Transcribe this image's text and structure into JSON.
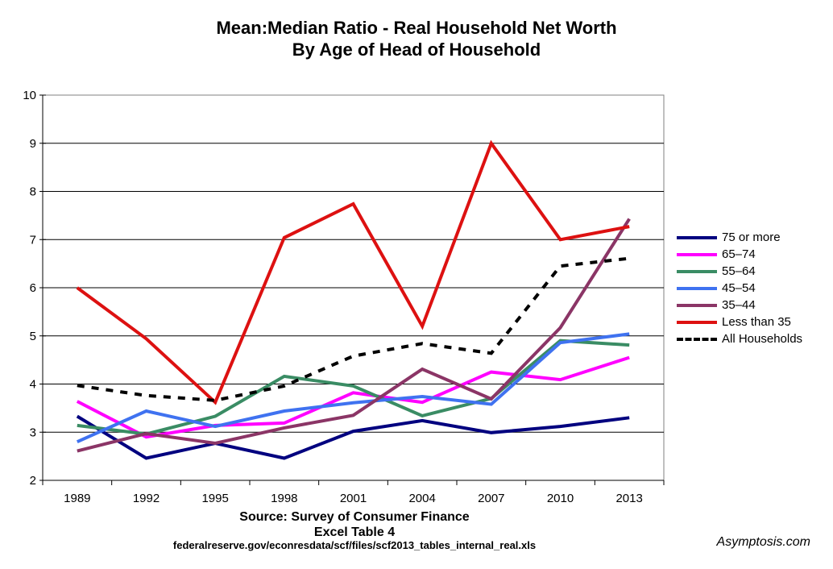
{
  "chart_data": {
    "type": "line",
    "title": "Mean:Median Ratio - Real Household Net Worth",
    "subtitle": "By Age of Head of Household",
    "categories": [
      "1989",
      "1992",
      "1995",
      "1998",
      "2001",
      "2004",
      "2007",
      "2010",
      "2013"
    ],
    "ylim": [
      2,
      10
    ],
    "yticks": [
      2,
      3,
      4,
      5,
      6,
      7,
      8,
      9,
      10
    ],
    "grid": true,
    "legend_position": "right",
    "series": [
      {
        "name": "75 or more",
        "color": "#00007f",
        "dashed": false,
        "values": [
          3.33,
          2.46,
          2.77,
          2.46,
          3.02,
          3.24,
          2.99,
          3.12,
          3.3
        ]
      },
      {
        "name": "65–74",
        "color": "#ff00ff",
        "dashed": false,
        "values": [
          3.64,
          2.9,
          3.14,
          3.19,
          3.82,
          3.62,
          4.25,
          4.09,
          4.55
        ]
      },
      {
        "name": "55–64",
        "color": "#3a8c64",
        "dashed": false,
        "values": [
          3.14,
          2.96,
          3.33,
          4.16,
          3.96,
          3.34,
          3.7,
          4.9,
          4.81
        ]
      },
      {
        "name": "45–54",
        "color": "#3f72f0",
        "dashed": false,
        "values": [
          2.8,
          3.44,
          3.12,
          3.44,
          3.61,
          3.74,
          3.58,
          4.86,
          5.04
        ]
      },
      {
        "name": "35–44",
        "color": "#8b3566",
        "dashed": false,
        "values": [
          2.61,
          2.97,
          2.77,
          3.09,
          3.35,
          4.31,
          3.69,
          5.17,
          7.43
        ]
      },
      {
        "name": "Less than 35",
        "color": "#dd1111",
        "dashed": false,
        "values": [
          6.0,
          4.94,
          3.62,
          7.04,
          7.74,
          5.2,
          9.0,
          7.0,
          7.27
        ]
      },
      {
        "name": "All Households",
        "color": "#000000",
        "dashed": true,
        "values": [
          3.97,
          3.76,
          3.66,
          3.96,
          4.58,
          4.84,
          4.64,
          6.45,
          6.61
        ]
      }
    ]
  },
  "source": {
    "line1": "Source: Survey of Consumer Finance",
    "line2": "Excel Table 4",
    "line3": "federalreserve.gov/econresdata/scf/files/scf2013_tables_internal_real.xls"
  },
  "credit": "Asymptosis.com"
}
